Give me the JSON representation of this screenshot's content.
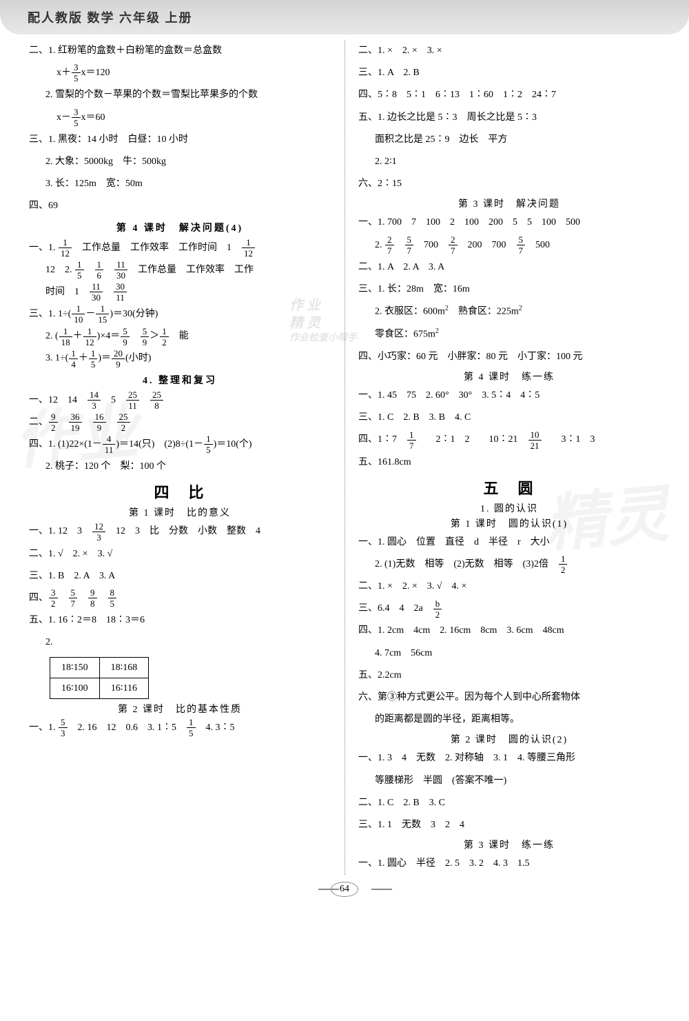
{
  "header": "配人教版 数学 六年级 上册",
  "page_number": "64",
  "watermarks": {
    "wm1": "作业",
    "wm2": "精灵",
    "wm3_l1": "作 业",
    "wm3_l2": "精 灵",
    "wm3_l3": "作业检查小帮手"
  },
  "left": {
    "l1": "二、1. 红粉笔的盒数＋白粉笔的盒数＝总盒数",
    "l3": "2. 雪梨的个数－苹果的个数＝雪梨比苹果多的个数",
    "l5": "三、1. 黑夜：14 小时　白昼：10 小时",
    "l6": "2. 大象：5000kg　牛：500kg",
    "l7": "3. 长：125m　宽：50m",
    "l8": "四、69",
    "t1": "第 4 课时　解决问题(4)",
    "l9a": "一、1. ",
    "l9b": "　工作总量　工作效率　工作时间　1　",
    "l10a": "12　2. ",
    "l10b": "　工作总量　工作效率　工作",
    "l11a": "时间　1　",
    "l12": "三、1. 1÷(",
    "l12b": ")＝30(分钟)",
    "l13a": "2. (",
    "l13b": ")×4＝",
    "l13c": "　能",
    "l14a": "3. 1÷(",
    "l14b": ")＝",
    "l14c": "(小时)",
    "t2": "4. 整理和复习",
    "l15": "一、12　14　",
    "l16": "二、",
    "l17": "四、1. (1)22×(1－",
    "l17b": ")＝14(只)　(2)8÷(1－",
    "l17c": ")＝10(个)",
    "l18": "2. 桃子：120 个　梨：100 个",
    "t3": "四　比",
    "t3s": "第 1 课时　比的意义",
    "l19": "一、1. 12　3　",
    "l19b": "　12　3　比　分数　小数　整数　4",
    "l20": "二、1. √　2. ×　3. √",
    "l21": "三、1. B　2. A　3. A",
    "l22": "四、",
    "l23": "五、1. 16∶2＝8　18∶3＝6",
    "l24": "2.",
    "tbl": {
      "r1c1": "18∶150",
      "r1c2": "18∶168",
      "r2c1": "16∶100",
      "r2c2": "16∶116"
    },
    "t4": "第 2 课时　比的基本性质",
    "l25": "一、1. ",
    "l25b": "　2. 16　12　0.6　3. 1∶5　",
    "l25c": "　4. 3∶5"
  },
  "right": {
    "r1": "二、1. ×　2. ×　3. ×",
    "r2": "三、1. A　2. B",
    "r3": "四、5∶8　5∶1　6∶13　1∶60　1∶2　24∶7",
    "r4": "五、1. 边长之比是 5∶3　周长之比是 5∶3",
    "r5": "面积之比是 25∶9　边长　平方",
    "r6": "2. 2∶1",
    "r7": "六、2∶15",
    "t1": "第 3 课时　解决问题",
    "r8": "一、1. 700　7　100　2　100　200　5　5　100　500",
    "r9": "2. ",
    "r9b": "　700　",
    "r9c": "　200　700　",
    "r9d": "　500",
    "r10": "二、1. A　2. A　3. A",
    "r11": "三、1. 长：28m　宽：16m",
    "r12": "2. 衣服区：600m",
    "r12b": "　熟食区：225m",
    "r13": "零食区：675m",
    "r14": "四、小巧家：60 元　小胖家：80 元　小丁家：100 元",
    "t2": "第 4 课时　练一练",
    "r15": "一、1. 45　75　2. 60°　30°　3. 5∶4　4∶5",
    "r16": "三、1. C　2. B　3. B　4. C",
    "r17": "四、1∶7　",
    "r17b": "　　2∶1　2　　10∶21　",
    "r17c": "　　3∶1　3",
    "r18": "五、161.8cm",
    "t3": "五　圆",
    "t3s": "1. 圆的认识",
    "t3s2": "第 1 课时　圆的认识(1)",
    "r19": "一、1. 圆心　位置　直径　d　半径　r　大小",
    "r20": "2. (1)无数　相等　(2)无数　相等　(3)2倍　",
    "r21": "二、1. ×　2. ×　3. √　4. ×",
    "r22": "三、6.4　4　2a　",
    "r23": "四、1. 2cm　4cm　2. 16cm　8cm　3. 6cm　48cm",
    "r24": "4. 7cm　56cm",
    "r25": "五、2.2cm",
    "r26": "六、第③种方式更公平。因为每个人到中心所套物体",
    "r27": "的距离都是圆的半径，距离相等。",
    "t4": "第 2 课时　圆的认识(2)",
    "r28": "一、1. 3　4　无数　2. 对称轴　3. 1　4. 等腰三角形",
    "r29": "等腰梯形　半圆　(答案不唯一)",
    "r30": "二、1. C　2. B　3. C",
    "r31": "三、1. 1　无数　3　2　4",
    "t5": "第 3 课时　练一练",
    "r32": "一、1. 圆心　半径　2. 5　3. 2　4. 3　1.5"
  }
}
